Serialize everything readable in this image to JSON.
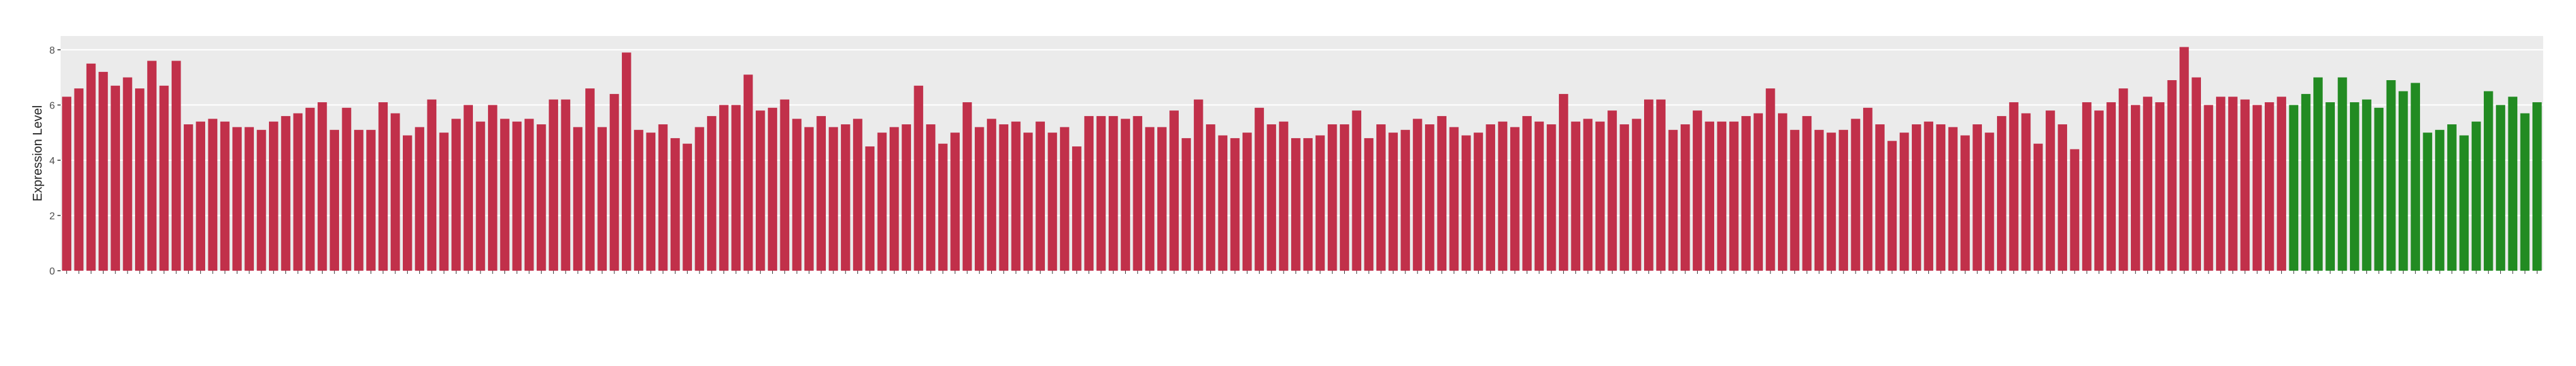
{
  "chart_data": {
    "type": "bar",
    "y_label": "Expression Level",
    "categories": [
      null,
      null,
      null,
      null,
      null,
      null,
      null,
      null,
      null,
      null,
      null,
      null,
      null,
      null,
      null,
      null,
      null,
      null,
      null,
      null,
      null,
      null,
      null,
      null,
      null,
      null,
      null,
      null,
      null,
      null,
      null,
      null,
      null,
      null,
      null,
      null,
      null,
      null,
      null,
      null,
      null,
      null,
      null,
      null,
      null,
      null,
      null,
      null,
      null,
      null,
      null,
      null,
      null,
      null,
      null,
      null,
      null,
      null,
      null,
      null,
      null,
      null,
      null,
      null,
      null,
      null,
      null,
      null,
      null,
      null,
      null,
      null,
      null,
      null,
      null,
      null,
      null,
      null,
      null,
      null,
      null,
      null,
      null,
      null,
      null,
      null,
      null,
      null,
      null,
      null,
      null,
      null,
      null,
      null,
      null,
      null,
      null,
      null,
      null,
      null,
      null,
      null,
      null,
      null,
      null,
      null,
      null,
      null,
      null,
      null,
      null,
      null,
      null,
      null,
      null,
      null,
      null,
      null,
      null,
      null,
      null,
      null,
      null,
      null,
      null,
      null,
      null,
      null,
      null,
      null,
      null,
      null,
      null,
      null,
      null,
      null,
      null,
      null,
      null,
      null,
      null,
      null,
      null,
      null,
      null,
      null,
      null,
      null,
      null,
      null,
      null,
      null,
      null,
      null,
      null,
      null,
      null,
      null,
      null,
      null,
      null,
      null,
      null,
      null,
      null,
      null,
      null,
      null,
      null,
      null,
      null,
      null,
      null,
      null,
      null,
      null,
      null,
      null,
      null,
      null,
      null,
      null,
      null,
      null,
      null,
      null,
      null,
      null,
      null,
      null,
      null,
      null,
      null,
      null,
      null,
      null,
      null,
      null,
      null,
      null,
      null,
      null,
      null,
      null
    ],
    "values": [
      6.3,
      6.6,
      7.5,
      7.2,
      6.7,
      7.0,
      6.6,
      7.6,
      6.7,
      7.6,
      5.3,
      5.4,
      5.5,
      5.4,
      5.2,
      5.2,
      5.1,
      5.4,
      5.6,
      5.7,
      5.9,
      6.1,
      5.1,
      5.9,
      5.1,
      5.1,
      6.1,
      5.7,
      4.9,
      5.2,
      6.2,
      5.0,
      5.5,
      6.0,
      5.4,
      6.0,
      5.5,
      5.4,
      5.5,
      5.3,
      6.2,
      6.2,
      5.2,
      6.6,
      5.2,
      6.4,
      7.9,
      5.1,
      5.0,
      5.3,
      4.8,
      4.6,
      5.2,
      5.6,
      6.0,
      6.0,
      7.1,
      5.8,
      5.9,
      6.2,
      5.5,
      5.2,
      5.6,
      5.2,
      5.3,
      5.5,
      4.5,
      5.0,
      5.2,
      5.3,
      6.7,
      5.3,
      4.6,
      5.0,
      6.1,
      5.2,
      5.5,
      5.3,
      5.4,
      5.0,
      5.4,
      5.0,
      5.2,
      4.5,
      5.6,
      5.6,
      5.6,
      5.5,
      5.6,
      5.2,
      5.2,
      5.8,
      4.8,
      6.2,
      5.3,
      4.9,
      4.8,
      5.0,
      5.9,
      5.3,
      5.4,
      4.8,
      4.8,
      4.9,
      5.3,
      5.3,
      5.8,
      4.8,
      5.3,
      5.0,
      5.1,
      5.5,
      5.3,
      5.6,
      5.2,
      4.9,
      5.0,
      5.3,
      5.4,
      5.2,
      5.6,
      5.4,
      5.3,
      6.4,
      5.4,
      5.5,
      5.4,
      5.8,
      5.3,
      5.5,
      6.2,
      6.2,
      5.1,
      5.3,
      5.8,
      5.4,
      5.4,
      5.4,
      5.6,
      5.7,
      6.6,
      5.7,
      5.1,
      5.6,
      5.1,
      5.0,
      5.1,
      5.5,
      5.9,
      5.3,
      4.7,
      5.0,
      5.3,
      5.4,
      5.3,
      5.2,
      4.9,
      5.3,
      5.0,
      5.6,
      6.1,
      5.7,
      4.6,
      5.8,
      5.3,
      4.4,
      6.1,
      5.8,
      6.1,
      6.6,
      6.0,
      6.3,
      6.1,
      6.9,
      8.1,
      7.0,
      6.0,
      6.3,
      6.3,
      6.2,
      6.0,
      6.1,
      6.3,
      6.0,
      6.4,
      7.0,
      6.1,
      7.0,
      6.1,
      6.2,
      5.9,
      6.9,
      6.5,
      6.8,
      5.0,
      5.1,
      5.3,
      4.9,
      5.4,
      6.5,
      6.0,
      6.3,
      5.7,
      6.1
    ],
    "colors": [
      "#c1304a",
      "#c1304a",
      "#c1304a",
      "#c1304a",
      "#c1304a",
      "#c1304a",
      "#c1304a",
      "#c1304a",
      "#c1304a",
      "#c1304a",
      "#c1304a",
      "#c1304a",
      "#c1304a",
      "#c1304a",
      "#c1304a",
      "#c1304a",
      "#c1304a",
      "#c1304a",
      "#c1304a",
      "#c1304a",
      "#c1304a",
      "#c1304a",
      "#c1304a",
      "#c1304a",
      "#c1304a",
      "#c1304a",
      "#c1304a",
      "#c1304a",
      "#c1304a",
      "#c1304a",
      "#c1304a",
      "#c1304a",
      "#c1304a",
      "#c1304a",
      "#c1304a",
      "#c1304a",
      "#c1304a",
      "#c1304a",
      "#c1304a",
      "#c1304a",
      "#c1304a",
      "#c1304a",
      "#c1304a",
      "#c1304a",
      "#c1304a",
      "#c1304a",
      "#c1304a",
      "#c1304a",
      "#c1304a",
      "#c1304a",
      "#c1304a",
      "#c1304a",
      "#c1304a",
      "#c1304a",
      "#c1304a",
      "#c1304a",
      "#c1304a",
      "#c1304a",
      "#c1304a",
      "#c1304a",
      "#c1304a",
      "#c1304a",
      "#c1304a",
      "#c1304a",
      "#c1304a",
      "#c1304a",
      "#c1304a",
      "#c1304a",
      "#c1304a",
      "#c1304a",
      "#c1304a",
      "#c1304a",
      "#c1304a",
      "#c1304a",
      "#c1304a",
      "#c1304a",
      "#c1304a",
      "#c1304a",
      "#c1304a",
      "#c1304a",
      "#c1304a",
      "#c1304a",
      "#c1304a",
      "#c1304a",
      "#c1304a",
      "#c1304a",
      "#c1304a",
      "#c1304a",
      "#c1304a",
      "#c1304a",
      "#c1304a",
      "#c1304a",
      "#c1304a",
      "#c1304a",
      "#c1304a",
      "#c1304a",
      "#c1304a",
      "#c1304a",
      "#c1304a",
      "#c1304a",
      "#c1304a",
      "#c1304a",
      "#c1304a",
      "#c1304a",
      "#c1304a",
      "#c1304a",
      "#c1304a",
      "#c1304a",
      "#c1304a",
      "#c1304a",
      "#c1304a",
      "#c1304a",
      "#c1304a",
      "#c1304a",
      "#c1304a",
      "#c1304a",
      "#c1304a",
      "#c1304a",
      "#c1304a",
      "#c1304a",
      "#c1304a",
      "#c1304a",
      "#c1304a",
      "#c1304a",
      "#c1304a",
      "#c1304a",
      "#c1304a",
      "#c1304a",
      "#c1304a",
      "#c1304a",
      "#c1304a",
      "#c1304a",
      "#c1304a",
      "#c1304a",
      "#c1304a",
      "#c1304a",
      "#c1304a",
      "#c1304a",
      "#c1304a",
      "#c1304a",
      "#c1304a",
      "#c1304a",
      "#c1304a",
      "#c1304a",
      "#c1304a",
      "#c1304a",
      "#c1304a",
      "#c1304a",
      "#c1304a",
      "#c1304a",
      "#c1304a",
      "#c1304a",
      "#c1304a",
      "#c1304a",
      "#c1304a",
      "#c1304a",
      "#c1304a",
      "#c1304a",
      "#c1304a",
      "#c1304a",
      "#c1304a",
      "#c1304a",
      "#c1304a",
      "#c1304a",
      "#c1304a",
      "#c1304a",
      "#c1304a",
      "#c1304a",
      "#c1304a",
      "#c1304a",
      "#c1304a",
      "#c1304a",
      "#c1304a",
      "#c1304a",
      "#c1304a",
      "#c1304a",
      "#c1304a",
      "#c1304a",
      "#c1304a",
      "#c1304a",
      "#c1304a",
      "#c1304a",
      "#c1304a",
      "#228b22",
      "#228b22",
      "#228b22",
      "#228b22",
      "#228b22",
      "#228b22",
      "#228b22",
      "#228b22",
      "#228b22",
      "#228b22",
      "#228b22",
      "#228b22",
      "#228b22",
      "#228b22",
      "#228b22",
      "#228b22",
      "#228b22",
      "#228b22",
      "#228b22",
      "#228b22",
      "#228b22"
    ],
    "ylim": [
      0,
      8.5
    ],
    "yticks": [
      0,
      2,
      4,
      6,
      8
    ],
    "grid": true
  }
}
